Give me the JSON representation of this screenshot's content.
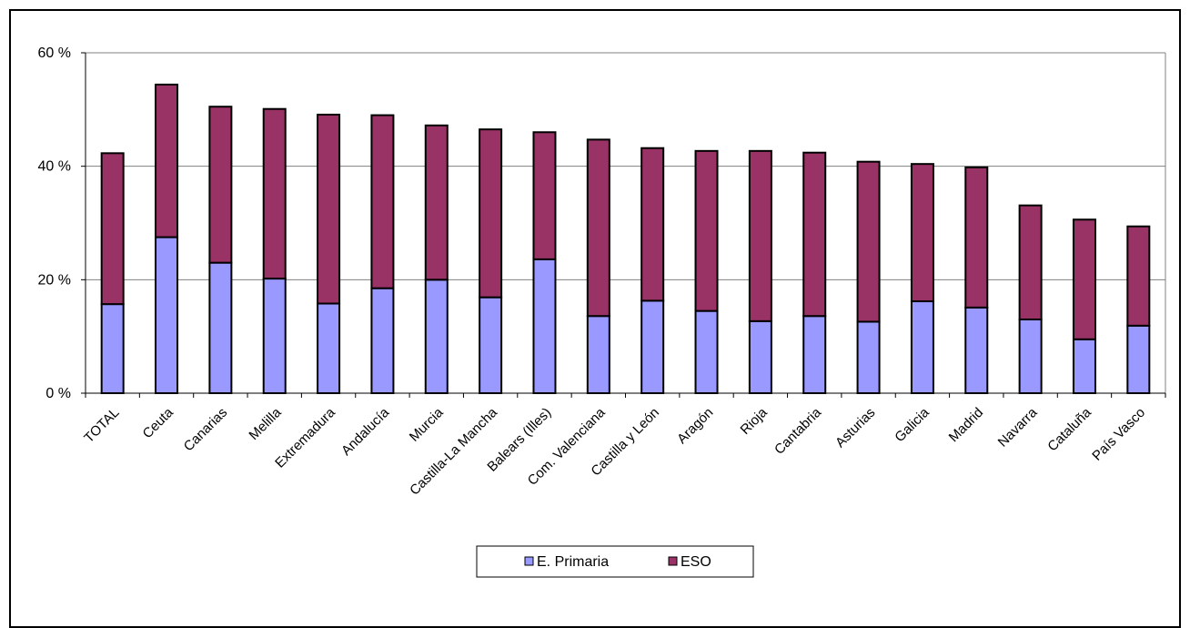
{
  "chart_data": {
    "type": "bar",
    "stacked": true,
    "categories": [
      "TOTAL",
      "Ceuta",
      "Canarias",
      "Melilla",
      "Extremadura",
      "Andalucía",
      "Murcia",
      "Castilla-La Mancha",
      "Balears (Illes)",
      "Com. Valenciana",
      "Castilla y León",
      "Aragón",
      "Rioja",
      "Cantabria",
      "Asturias",
      "Galicia",
      "Madrid",
      "Navarra",
      "Cataluña",
      "País Vasco"
    ],
    "series": [
      {
        "name": "E. Primaria",
        "color": "#9999ff",
        "values": [
          15.7,
          27.5,
          23.0,
          20.2,
          15.8,
          18.5,
          20.0,
          16.9,
          23.6,
          13.6,
          16.3,
          14.5,
          12.7,
          13.6,
          12.6,
          16.2,
          15.1,
          13.0,
          9.5,
          11.9
        ]
      },
      {
        "name": "ESO",
        "color": "#993366",
        "values": [
          26.6,
          26.9,
          27.5,
          29.9,
          33.3,
          30.5,
          27.2,
          29.6,
          22.4,
          31.1,
          26.9,
          28.2,
          30.0,
          28.8,
          28.2,
          24.2,
          24.7,
          20.1,
          21.1,
          17.5
        ]
      }
    ],
    "yticks": [
      "0 %",
      "20 %",
      "40 %",
      "60 %"
    ],
    "ylim": [
      0,
      60
    ],
    "grid": true,
    "legend": "bottom-center"
  }
}
